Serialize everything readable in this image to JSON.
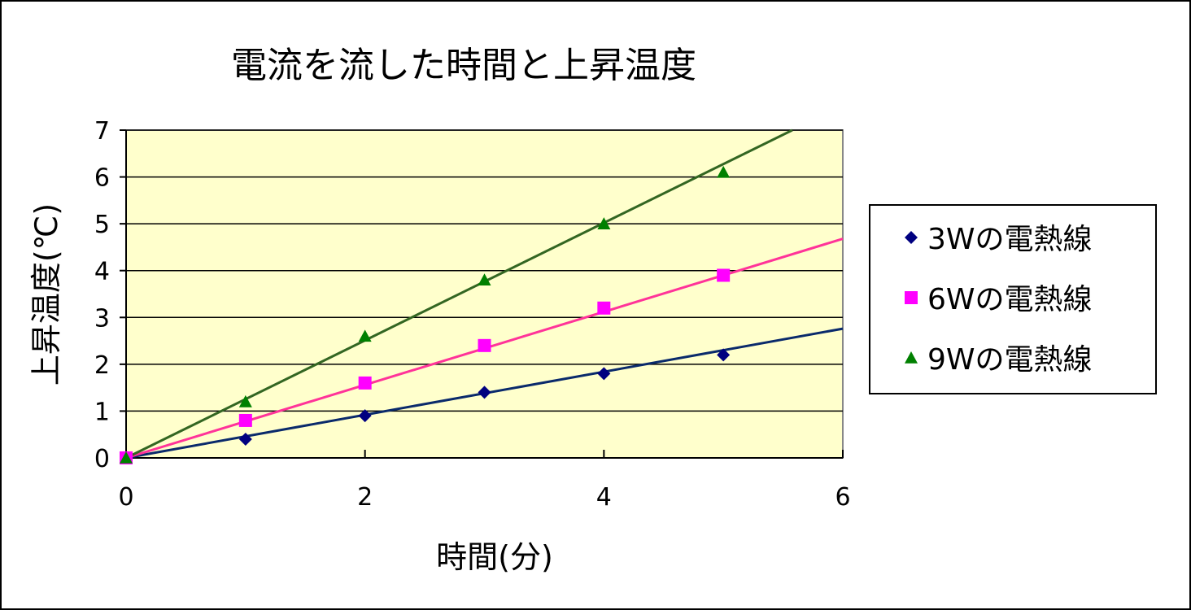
{
  "chart_data": {
    "type": "scatter",
    "title": "電流を流した時間と上昇温度",
    "xlabel": "時間(分)",
    "ylabel": "上昇温度(℃)",
    "xlim": [
      0,
      6
    ],
    "ylim": [
      0,
      7
    ],
    "x_ticks": [
      "0",
      "2",
      "4",
      "6"
    ],
    "y_ticks": [
      "0",
      "1",
      "2",
      "3",
      "4",
      "5",
      "6",
      "7"
    ],
    "grid": "horizontal",
    "legend_position": "right",
    "plot_background": "#ffffcc",
    "series": [
      {
        "name": "3Wの電熱線",
        "marker": "diamond",
        "color": "#000080",
        "line_color": "#0a2a6b",
        "x": [
          0,
          1,
          2,
          3,
          4,
          5
        ],
        "y": [
          0,
          0.4,
          0.9,
          1.4,
          1.8,
          2.2
        ],
        "trendline_slope": 0.46
      },
      {
        "name": "6Wの電熱線",
        "marker": "square",
        "color": "#ff00ff",
        "line_color": "#ff3399",
        "x": [
          0,
          1,
          2,
          3,
          4,
          5
        ],
        "y": [
          0,
          0.8,
          1.6,
          2.4,
          3.2,
          3.9
        ],
        "trendline_slope": 0.78
      },
      {
        "name": "9Wの電熱線",
        "marker": "triangle",
        "color": "#008000",
        "line_color": "#336622",
        "x": [
          0,
          1,
          2,
          3,
          4,
          5
        ],
        "y": [
          0,
          1.2,
          2.6,
          3.8,
          5.0,
          6.1
        ],
        "trendline_slope": 1.255
      }
    ]
  }
}
